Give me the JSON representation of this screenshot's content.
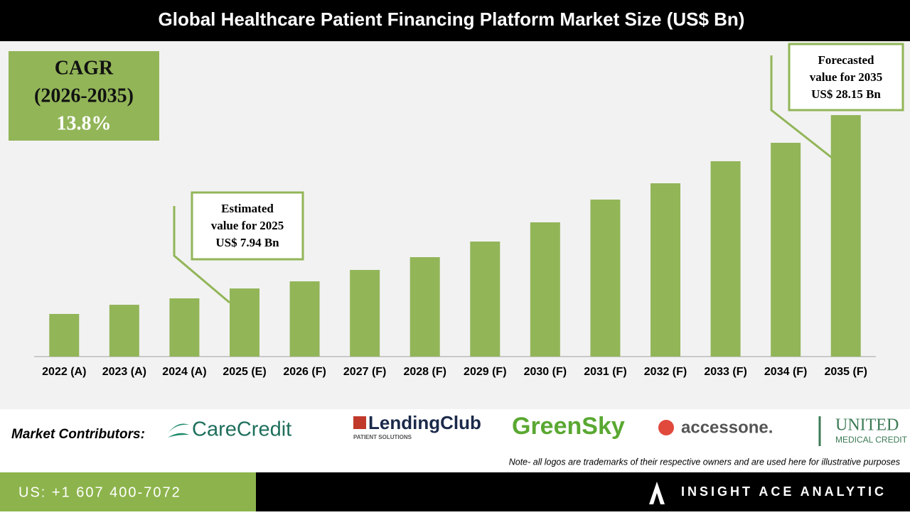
{
  "chart_data": {
    "type": "bar",
    "title": "Global Healthcare Patient Financing Platform Market Size (US$ Bn)",
    "categories": [
      "2022 (A)",
      "2023 (A)",
      "2024 (A)",
      "2025 (E)",
      "2026 (F)",
      "2027 (F)",
      "2028 (F)",
      "2029 (F)",
      "2030 (F)",
      "2031 (F)",
      "2032 (F)",
      "2033 (F)",
      "2034 (F)",
      "2035 (F)"
    ],
    "values": [
      4.97,
      6.04,
      6.79,
      7.94,
      8.77,
      10.1,
      11.59,
      13.41,
      15.65,
      18.3,
      20.2,
      22.77,
      24.92,
      28.15
    ],
    "color": "#92b558",
    "cagr_box": {
      "label": "CAGR",
      "period": "(2026-2035)",
      "value": "13.8%"
    },
    "annotations": [
      {
        "lines": [
          "Estimated",
          "value for 2025",
          "US$ 7.94 Bn"
        ]
      },
      {
        "lines": [
          "Forecasted",
          "value for 2035",
          "US$ 28.15 Bn"
        ]
      }
    ]
  },
  "contributors": {
    "label": "Market Contributors:",
    "logos": [
      "CareCredit",
      "LendingClub",
      "PATIENT SOLUTIONS",
      "GreenSky",
      "accessone.",
      "UNITED",
      "MEDICAL CREDIT"
    ],
    "note": "Note- all logos are trademarks of their respective owners and are used here for illustrative purposes"
  },
  "footer": {
    "phone": "US: +1 607 400-7072",
    "brand": "INSIGHT ACE ANALYTIC"
  }
}
